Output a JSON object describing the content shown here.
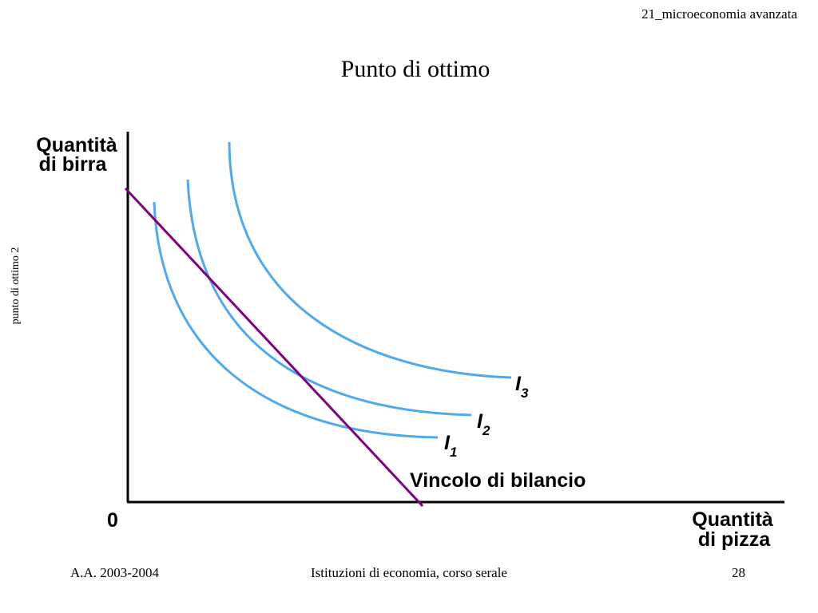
{
  "header": {
    "course_code": "21_microeconomia avanzata",
    "title": "Punto di ottimo"
  },
  "side_label": "punto di ottimo 2",
  "diagram": {
    "y_axis_label_line1": "Quantità",
    "y_axis_label_line2": "di birra",
    "x_axis_label_line1": "Quantità",
    "x_axis_label_line2": "di pizza",
    "origin_label": "0",
    "budget_line_label": "Vincolo di bilancio",
    "curves": [
      {
        "letter": "I",
        "subscript": "1"
      },
      {
        "letter": "I",
        "subscript": "2"
      },
      {
        "letter": "I",
        "subscript": "3"
      }
    ],
    "colors": {
      "indifference": "#4fa9ea",
      "budget": "#800080",
      "axes": "#000000"
    }
  },
  "footer": {
    "year": "A.A. 2003-2004",
    "course": "Istituzioni di economia, corso serale",
    "page": "28"
  }
}
